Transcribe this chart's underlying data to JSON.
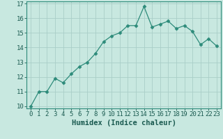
{
  "x": [
    0,
    1,
    2,
    3,
    4,
    5,
    6,
    7,
    8,
    9,
    10,
    11,
    12,
    13,
    14,
    15,
    16,
    17,
    18,
    19,
    20,
    21,
    22,
    23
  ],
  "y": [
    10.0,
    11.0,
    11.0,
    11.9,
    11.6,
    12.2,
    12.7,
    13.0,
    13.6,
    14.4,
    14.8,
    15.0,
    15.5,
    15.5,
    16.8,
    15.4,
    15.6,
    15.8,
    15.3,
    15.5,
    15.1,
    14.2,
    14.6,
    14.1
  ],
  "xlabel": "Humidex (Indice chaleur)",
  "ylim": [
    10,
    17
  ],
  "xlim": [
    -0.5,
    23.5
  ],
  "yticks": [
    10,
    11,
    12,
    13,
    14,
    15,
    16,
    17
  ],
  "xticks": [
    0,
    1,
    2,
    3,
    4,
    5,
    6,
    7,
    8,
    9,
    10,
    11,
    12,
    13,
    14,
    15,
    16,
    17,
    18,
    19,
    20,
    21,
    22,
    23
  ],
  "line_color": "#2d8b7a",
  "marker": "D",
  "marker_size": 2.5,
  "bg_color": "#c8e8e0",
  "grid_color": "#aacec8",
  "axis_color": "#2d8b7a",
  "tick_color": "#1a5a50",
  "xlabel_color": "#1a5a50",
  "xlabel_fontsize": 7.5,
  "tick_fontsize": 6.5
}
